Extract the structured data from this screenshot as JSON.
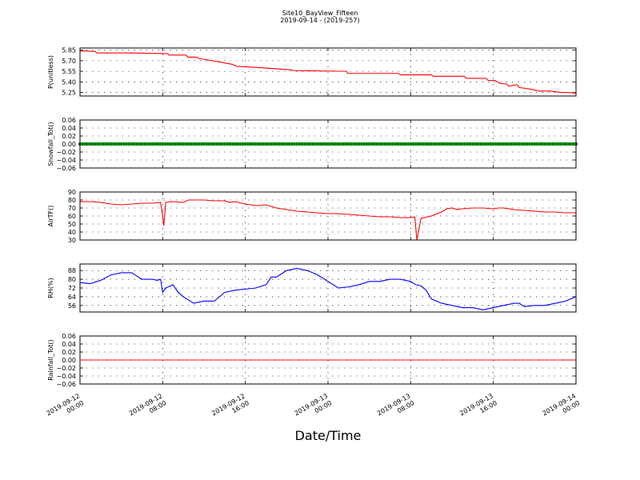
{
  "chart_data": {
    "title": "Site10_BayView_Fifteen",
    "subtitle": "2019-09-14 - (2019-257)",
    "xlabel": "Date/Time",
    "xlim": [
      "2019-09-12 00:00",
      "2019-09-14 00:00"
    ],
    "x_ticks": [
      {
        "line1": "2019-09-12",
        "line2": "00:00"
      },
      {
        "line1": "2019-09-12",
        "line2": "08:00"
      },
      {
        "line1": "2019-09-12",
        "line2": "16:00"
      },
      {
        "line1": "2019-09-13",
        "line2": "00:00"
      },
      {
        "line1": "2019-09-13",
        "line2": "08:00"
      },
      {
        "line1": "2019-09-13",
        "line2": "16:00"
      },
      {
        "line1": "2019-09-14",
        "line2": "00:00"
      }
    ],
    "grid": true,
    "panels": [
      {
        "type": "line",
        "ylabel": "P(unitless)",
        "color": "#ff0000",
        "ylim": [
          5.2,
          5.88
        ],
        "yticks": [
          "5.85",
          "5.70",
          "5.55",
          "5.40",
          "5.25"
        ],
        "series": [
          {
            "x": [
              0,
              1.5,
              1.6,
              5,
              8.5,
              8.6,
              10.3,
              10.4,
              11.3,
              11.5,
              12,
              13.6,
              14.7,
              15.2,
              17.6,
              20.5,
              20.6,
              25.8,
              25.9,
              30.8,
              31.0,
              34,
              34.2,
              37.2,
              37.4,
              39.3,
              39.5,
              40.2,
              40.6,
              41.3,
              41.5,
              42.3,
              42.5,
              43.5,
              44.5,
              45.5,
              46.5,
              47.2,
              48
            ],
            "y": [
              5.84,
              5.83,
              5.81,
              5.81,
              5.8,
              5.78,
              5.78,
              5.75,
              5.75,
              5.73,
              5.72,
              5.68,
              5.65,
              5.62,
              5.6,
              5.57,
              5.56,
              5.55,
              5.52,
              5.52,
              5.5,
              5.5,
              5.48,
              5.48,
              5.45,
              5.45,
              5.42,
              5.42,
              5.38,
              5.37,
              5.34,
              5.36,
              5.32,
              5.3,
              5.27,
              5.27,
              5.25,
              5.25,
              5.24
            ]
          }
        ]
      },
      {
        "type": "line",
        "ylabel": "Snowfall_Tot()",
        "color": "#008000",
        "ylim": [
          -0.06,
          0.06
        ],
        "yticks": [
          "0.06",
          "0.04",
          "0.02",
          "0.00",
          "−0.02",
          "−0.04",
          "−0.06"
        ],
        "markers": true,
        "series": [
          {
            "x": [
              0,
              48
            ],
            "y": [
              0,
              0
            ]
          }
        ]
      },
      {
        "type": "line",
        "ylabel": "AirTF()",
        "color": "#ff0000",
        "ylim": [
          30,
          90
        ],
        "yticks": [
          "90",
          "80",
          "70",
          "60",
          "50",
          "40",
          "30"
        ],
        "series": [
          {
            "x": [
              0,
              1,
              2,
              3,
              4,
              5,
              6,
              7,
              7.8,
              8.0,
              8.1,
              8.3,
              9,
              10,
              10.5,
              11,
              12,
              13,
              14,
              14.5,
              15,
              16,
              17,
              18,
              19,
              20,
              21,
              22,
              23,
              24,
              25,
              26,
              27,
              28,
              29,
              30,
              31,
              32,
              32.4,
              32.6,
              33,
              34,
              35,
              35.5,
              36,
              36.5,
              37,
              38,
              39,
              40,
              40.5,
              41,
              42,
              43,
              44,
              45,
              46,
              47,
              48
            ],
            "y": [
              78,
              78,
              77,
              75,
              74,
              75,
              76,
              76,
              77,
              60,
              48,
              77,
              78,
              77,
              80,
              80,
              80,
              79,
              79,
              77,
              78,
              75,
              73,
              74,
              70,
              68,
              66,
              65,
              64,
              63,
              63,
              62,
              61,
              60,
              59,
              59,
              58,
              58,
              59,
              30,
              57,
              60,
              65,
              69,
              70,
              68,
              69,
              70,
              70,
              69,
              70,
              70,
              68,
              67,
              66,
              65,
              65,
              64,
              64
            ]
          }
        ]
      },
      {
        "type": "line",
        "ylabel": "RH(%)",
        "color": "#0000ff",
        "ylim": [
          50,
          94
        ],
        "yticks": [
          "88",
          "80",
          "72",
          "64",
          "56"
        ],
        "series": [
          {
            "x": [
              0,
              1,
              2,
              3,
              4,
              5,
              6,
              7,
              7.5,
              7.8,
              8.0,
              8.3,
              9,
              9.5,
              10,
              11,
              12,
              13,
              14,
              15,
              16,
              17,
              18,
              18.5,
              19,
              19.5,
              20,
              21,
              22,
              23,
              24,
              25,
              26,
              27,
              28,
              29,
              30,
              31,
              32,
              32.5,
              33,
              33.5,
              34,
              35,
              36,
              37,
              38,
              39,
              40,
              41,
              42,
              42.5,
              43,
              44,
              45,
              46,
              47,
              48
            ],
            "y": [
              77,
              76,
              79,
              84,
              86,
              86,
              80,
              80,
              79,
              80,
              68,
              72,
              75,
              68,
              64,
              58,
              60,
              60,
              68,
              70,
              71,
              72,
              75,
              82,
              82,
              85,
              88,
              90,
              88,
              84,
              78,
              72,
              73,
              75,
              78,
              78,
              80,
              80,
              78,
              75,
              74,
              70,
              62,
              58,
              56,
              54,
              54,
              52,
              54,
              56,
              58,
              58,
              55,
              56,
              56,
              58,
              60,
              64
            ]
          }
        ]
      },
      {
        "type": "line",
        "ylabel": "Rainfall_Tot()",
        "color": "#ff0000",
        "ylim": [
          -0.06,
          0.06
        ],
        "yticks": [
          "0.06",
          "0.04",
          "0.02",
          "0.00",
          "−0.02",
          "−0.04",
          "−0.06"
        ],
        "series": [
          {
            "x": [
              0,
              48
            ],
            "y": [
              0,
              0
            ]
          }
        ]
      }
    ]
  }
}
